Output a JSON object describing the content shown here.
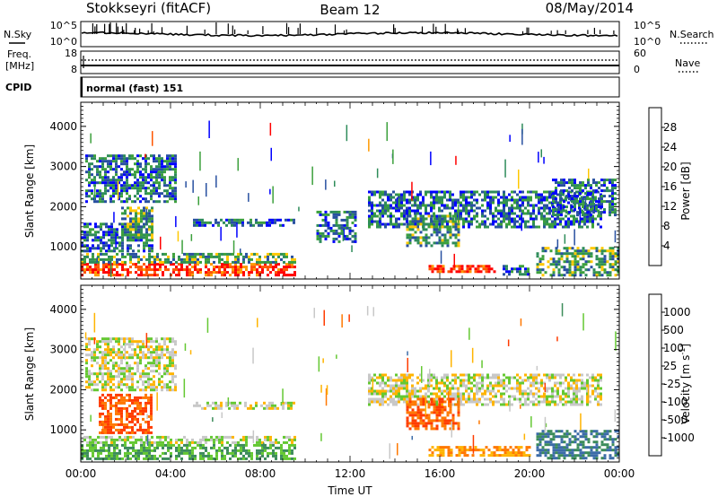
{
  "header": {
    "station": "Stokkseyri (fitACF)",
    "beam": "Beam 12",
    "date": "08/May/2014"
  },
  "top_panel": {
    "left_label": "N.Sky",
    "right_label": "N.Search",
    "left_ticks": [
      "10^5",
      "10^0"
    ],
    "right_ticks": [
      "10^5",
      "10^0"
    ]
  },
  "freq_panel": {
    "left_label_1": "Freq.",
    "left_label_2": "[MHz]",
    "right_label": "Nave",
    "left_ticks": [
      "18",
      "8"
    ],
    "right_ticks": [
      "60",
      "0"
    ]
  },
  "cpid": {
    "label": "CPID",
    "value": "normal (fast) 151"
  },
  "axes": {
    "x_ticks": [
      "00:00",
      "04:00",
      "08:00",
      "12:00",
      "16:00",
      "20:00",
      "00:00"
    ],
    "x_label": "Time UT",
    "y_ticks": [
      "4000",
      "3000",
      "2000",
      "1000"
    ],
    "y_label": "Slant Range [km]"
  },
  "power_colorbar": {
    "label": "Power [dB]",
    "ticks": [
      "28",
      "24",
      "20",
      "16",
      "12",
      "8",
      "4"
    ],
    "colors": [
      "#ff0000",
      "#ff5500",
      "#ff9900",
      "#ffc800",
      "#3ca03c",
      "#2e8c5a",
      "#2850a0",
      "#0000ff"
    ]
  },
  "velocity_colorbar": {
    "label": "Velocity [m s",
    "label_sup": "-1",
    "label_end": "]",
    "ticks": [
      "1000",
      "500",
      "100",
      "25",
      "-25",
      "-100",
      "-500",
      "-1000"
    ],
    "colors": [
      "#2040c0",
      "#3c6ca8",
      "#3c8c5a",
      "#64c832",
      "#c8c8c8",
      "#ffb400",
      "#ff7800",
      "#ff3c00",
      "#ff0000"
    ]
  },
  "chart_data": {
    "type": "heatmap",
    "title": "Stokkseyri (fitACF)",
    "xlabel": "Time UT",
    "ylabel": "Slant Range [km]",
    "xlim": [
      "00:00",
      "24:00"
    ],
    "ylim": [
      200,
      4600
    ],
    "power_regions": [
      {
        "t0": 0.0,
        "t1": 9.6,
        "r0": 300,
        "r1": 600,
        "level": 28
      },
      {
        "t0": 0.0,
        "t1": 9.6,
        "r0": 600,
        "r1": 850,
        "level": 12
      },
      {
        "t0": 0.0,
        "t1": 3.2,
        "r0": 900,
        "r1": 1600,
        "level": 8
      },
      {
        "t0": 0.2,
        "t1": 4.2,
        "r0": 2100,
        "r1": 3300,
        "level": 8
      },
      {
        "t0": 1.8,
        "t1": 3.2,
        "r0": 1200,
        "r1": 2000,
        "level": 12
      },
      {
        "t0": 5.0,
        "t1": 9.5,
        "r0": 1500,
        "r1": 1700,
        "level": 8
      },
      {
        "t0": 10.5,
        "t1": 12.2,
        "r0": 1100,
        "r1": 1900,
        "level": 8
      },
      {
        "t0": 12.8,
        "t1": 23.2,
        "r0": 1500,
        "r1": 2400,
        "level": 8
      },
      {
        "t0": 14.5,
        "t1": 16.8,
        "r0": 1000,
        "r1": 1800,
        "level": 12
      },
      {
        "t0": 15.5,
        "t1": 18.5,
        "r0": 350,
        "r1": 550,
        "level": 28
      },
      {
        "t0": 18.8,
        "t1": 20.0,
        "r0": 300,
        "r1": 550,
        "level": 8
      },
      {
        "t0": 20.3,
        "t1": 24.0,
        "r0": 300,
        "r1": 1000,
        "level": 12
      },
      {
        "t0": 21.0,
        "t1": 23.8,
        "r0": 1800,
        "r1": 2700,
        "level": 8
      }
    ],
    "velocity_regions": [
      {
        "t0": 0.0,
        "t1": 9.6,
        "r0": 300,
        "r1": 650,
        "level": 100
      },
      {
        "t0": 0.0,
        "t1": 9.6,
        "r0": 650,
        "r1": 850,
        "level": 25
      },
      {
        "t0": 0.2,
        "t1": 4.2,
        "r0": 2000,
        "r1": 3300,
        "level": 0
      },
      {
        "t0": 0.8,
        "t1": 3.2,
        "r0": 900,
        "r1": 1900,
        "level": -500
      },
      {
        "t0": 5.0,
        "t1": 9.5,
        "r0": 1500,
        "r1": 1700,
        "level": 0
      },
      {
        "t0": 12.8,
        "t1": 23.2,
        "r0": 1600,
        "r1": 2400,
        "level": 0
      },
      {
        "t0": 14.5,
        "t1": 16.8,
        "r0": 1000,
        "r1": 1800,
        "level": -500
      },
      {
        "t0": 15.5,
        "t1": 20.0,
        "r0": 350,
        "r1": 600,
        "level": -100
      },
      {
        "t0": 20.3,
        "t1": 24.0,
        "r0": 300,
        "r1": 1000,
        "level": 500
      }
    ]
  }
}
